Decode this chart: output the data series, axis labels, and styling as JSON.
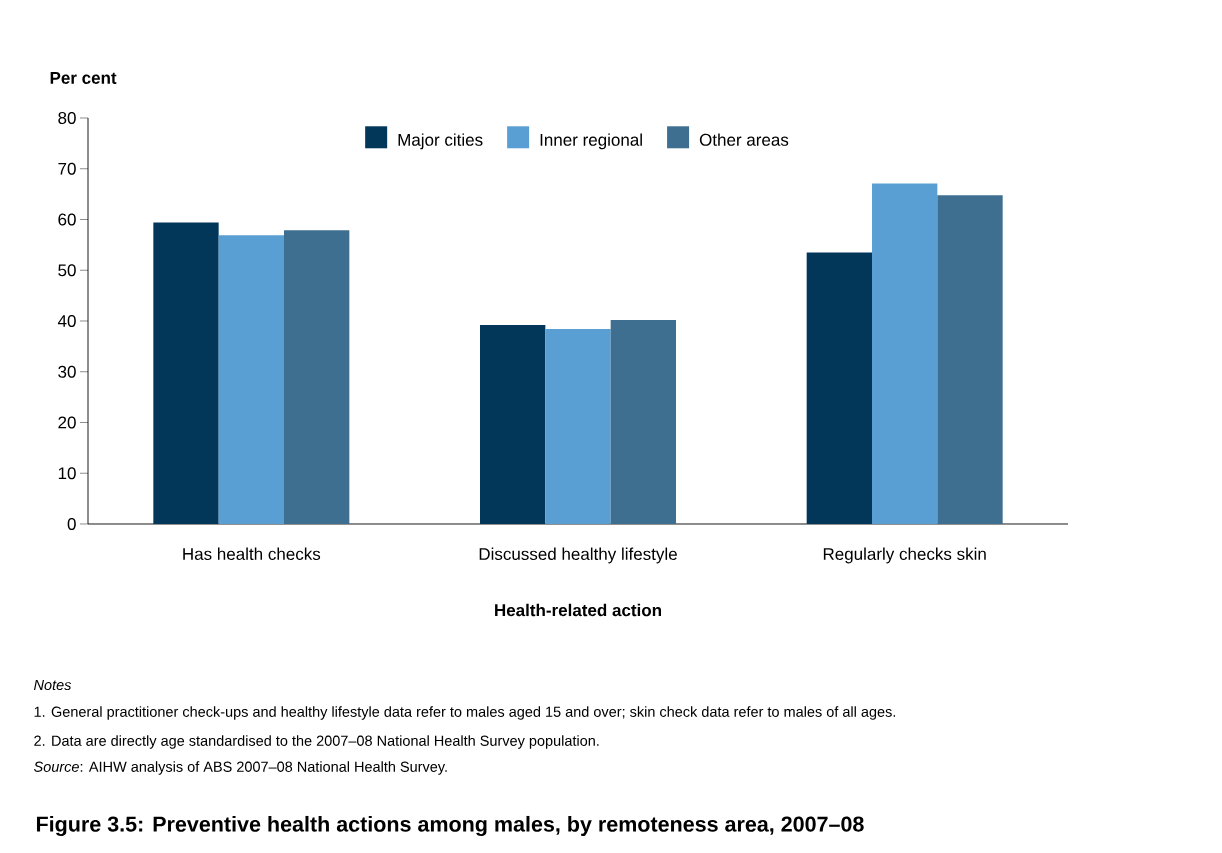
{
  "chart_data": {
    "type": "bar",
    "title": "Figure 3.5: Preventive health actions among males, by remoteness area, 2007–08",
    "xlabel": "Health-related action",
    "ylabel": "Per cent",
    "categories": [
      "Has health checks",
      "Discussed healthy lifestyle",
      "Regularly checks skin"
    ],
    "series": [
      {
        "name": "Major cities",
        "color": "#03375a",
        "values": [
          59.4,
          39.2,
          53.5
        ]
      },
      {
        "name": "Inner regional",
        "color": "#5a9fd4",
        "values": [
          56.9,
          38.4,
          67.1
        ]
      },
      {
        "name": "Other areas",
        "color": "#3e6f90",
        "values": [
          57.9,
          40.2,
          64.8
        ]
      }
    ],
    "ylim": [
      0,
      80
    ],
    "yticks": [
      0,
      10,
      20,
      30,
      40,
      50,
      60,
      70,
      80
    ],
    "legend": "top",
    "annotations": [
      "Notes",
      "1.  General practitioner check-ups and healthy lifestyle data refer to males aged 15 and over; skin check data refer to males of all ages.",
      "2.  Data are directly age standardised to the 2007–08 National Health Survey population.",
      "*Source*: AIHW analysis of ABS 2007–08 National Health Survey."
    ]
  }
}
